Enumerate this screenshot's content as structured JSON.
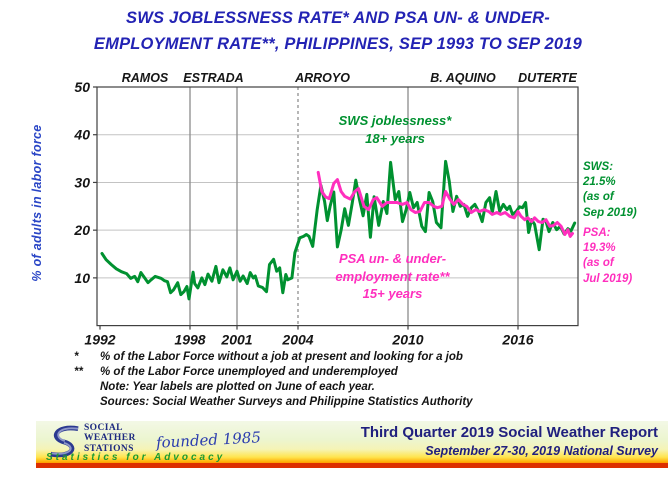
{
  "title": "SWS JOBLESSNESS RATE* AND PSA UN- & UNDER-\nEMPLOYMENT RATE**, PHILIPPINES, SEP 1993 TO SEP 2019",
  "colors": {
    "title_blue": "#2323b4",
    "axis_label_blue": "#2a46c6",
    "sws_green": "#009130",
    "psa_pink": "#ff2fbe",
    "footer_navy": "#20207e"
  },
  "chart_data": {
    "type": "line",
    "title": "SWS Joblessness Rate and PSA Un- & Under-employment Rate, Philippines, Sep 1993 to Sep 2019",
    "xlabel": "",
    "ylabel": "% of adults in labor force",
    "ylim": [
      0,
      50
    ],
    "y_ticks": [
      10,
      20,
      30,
      40,
      50
    ],
    "x_tick_years": [
      1992,
      1998,
      2001,
      2004,
      2010,
      2016
    ],
    "grid": "horizontal",
    "era_dividers_solid": [
      1998,
      2001,
      2010,
      2016
    ],
    "era_dividers_dashed": [
      2004
    ],
    "eras": [
      {
        "label": "RAMOS",
        "start": 1992.0,
        "end": 1998.0
      },
      {
        "label": "ESTRADA",
        "start": 1998.0,
        "end": 2001.0
      },
      {
        "label": "ARROYO",
        "start": 2001.0,
        "end": 2010.0
      },
      {
        "label": "B. AQUINO",
        "start": 2010.0,
        "end": 2016.0
      },
      {
        "label": "DUTERTE",
        "start": 2016.0,
        "end": 2019.9
      }
    ],
    "series": [
      {
        "name": "SWS joblessness (18+ years)",
        "color": "#009130",
        "points": [
          [
            1993.7,
            15.1
          ],
          [
            1993.9,
            13.8
          ],
          [
            1994.15,
            12.8
          ],
          [
            1994.4,
            11.9
          ],
          [
            1994.65,
            11.3
          ],
          [
            1994.9,
            10.9
          ],
          [
            1995.1,
            9.9
          ],
          [
            1995.3,
            10.3
          ],
          [
            1995.45,
            9.2
          ],
          [
            1995.6,
            11.1
          ],
          [
            1995.8,
            9.9
          ],
          [
            1995.95,
            9.0
          ],
          [
            1996.1,
            9.6
          ],
          [
            1996.3,
            10.3
          ],
          [
            1996.45,
            10.1
          ],
          [
            1996.6,
            9.9
          ],
          [
            1996.75,
            9.4
          ],
          [
            1996.9,
            9.2
          ],
          [
            1997.05,
            6.9
          ],
          [
            1997.2,
            7.5
          ],
          [
            1997.4,
            9.0
          ],
          [
            1997.55,
            6.5
          ],
          [
            1997.7,
            7.1
          ],
          [
            1997.85,
            8.2
          ],
          [
            1997.95,
            5.6
          ],
          [
            1998.2,
            11.2
          ],
          [
            1998.3,
            8.8
          ],
          [
            1998.5,
            7.9
          ],
          [
            1998.75,
            10.0
          ],
          [
            1998.95,
            8.6
          ],
          [
            1999.15,
            10.8
          ],
          [
            1999.4,
            9.3
          ],
          [
            1999.65,
            12.4
          ],
          [
            1999.85,
            9.0
          ],
          [
            2000.1,
            11.7
          ],
          [
            2000.35,
            10.2
          ],
          [
            2000.55,
            12.1
          ],
          [
            2000.75,
            9.6
          ],
          [
            2001.0,
            11.4
          ],
          [
            2001.15,
            9.3
          ],
          [
            2001.3,
            10.4
          ],
          [
            2001.5,
            8.8
          ],
          [
            2001.65,
            11.1
          ],
          [
            2001.8,
            10.0
          ],
          [
            2001.9,
            10.4
          ],
          [
            2002.05,
            8.3
          ],
          [
            2002.25,
            8.0
          ],
          [
            2002.45,
            7.1
          ],
          [
            2002.6,
            12.8
          ],
          [
            2002.8,
            13.9
          ],
          [
            2002.95,
            11.4
          ],
          [
            2003.1,
            12.1
          ],
          [
            2003.25,
            6.9
          ],
          [
            2003.4,
            10.7
          ],
          [
            2003.5,
            9.6
          ],
          [
            2003.7,
            10.0
          ],
          [
            2003.85,
            15.3
          ],
          [
            2004.1,
            18.4
          ],
          [
            2004.3,
            18.7
          ],
          [
            2004.45,
            19.1
          ],
          [
            2004.6,
            18.7
          ],
          [
            2004.8,
            16.6
          ],
          [
            2005.05,
            24.3
          ],
          [
            2005.25,
            29.4
          ],
          [
            2005.45,
            26.0
          ],
          [
            2005.6,
            22.0
          ],
          [
            2005.75,
            25.0
          ],
          [
            2005.95,
            28.0
          ],
          [
            2006.15,
            16.5
          ],
          [
            2006.35,
            20.0
          ],
          [
            2006.55,
            24.5
          ],
          [
            2006.75,
            21.0
          ],
          [
            2006.95,
            25.5
          ],
          [
            2007.15,
            30.5
          ],
          [
            2007.35,
            26.5
          ],
          [
            2007.55,
            23.0
          ],
          [
            2007.75,
            27.5
          ],
          [
            2007.95,
            18.5
          ],
          [
            2008.15,
            27.0
          ],
          [
            2008.4,
            21.0
          ],
          [
            2008.65,
            26.0
          ],
          [
            2008.85,
            23.5
          ],
          [
            2009.05,
            34.2
          ],
          [
            2009.3,
            26.4
          ],
          [
            2009.5,
            28.1
          ],
          [
            2009.7,
            21.8
          ],
          [
            2009.9,
            24.3
          ],
          [
            2010.1,
            27.9
          ],
          [
            2010.3,
            24.7
          ],
          [
            2010.5,
            25.8
          ],
          [
            2010.75,
            20.8
          ],
          [
            2010.95,
            19.7
          ],
          [
            2011.15,
            27.9
          ],
          [
            2011.35,
            26.0
          ],
          [
            2011.55,
            21.6
          ],
          [
            2011.8,
            20.5
          ],
          [
            2012.05,
            34.4
          ],
          [
            2012.25,
            30.2
          ],
          [
            2012.45,
            23.9
          ],
          [
            2012.65,
            27.1
          ],
          [
            2012.85,
            25.0
          ],
          [
            2013.05,
            25.4
          ],
          [
            2013.25,
            22.9
          ],
          [
            2013.45,
            24.7
          ],
          [
            2013.65,
            25.4
          ],
          [
            2013.85,
            23.9
          ],
          [
            2014.05,
            21.8
          ],
          [
            2014.25,
            25.8
          ],
          [
            2014.45,
            26.8
          ],
          [
            2014.6,
            23.7
          ],
          [
            2014.8,
            28.1
          ],
          [
            2015.0,
            23.9
          ],
          [
            2015.2,
            25.4
          ],
          [
            2015.4,
            24.3
          ],
          [
            2015.55,
            25.0
          ],
          [
            2015.7,
            23.3
          ],
          [
            2015.9,
            23.9
          ],
          [
            2016.1,
            24.9
          ],
          [
            2016.3,
            24.7
          ],
          [
            2016.5,
            25.8
          ],
          [
            2016.7,
            19.5
          ],
          [
            2016.9,
            22.2
          ],
          [
            2017.1,
            21.2
          ],
          [
            2017.4,
            15.9
          ],
          [
            2017.65,
            22.3
          ],
          [
            2017.85,
            21.8
          ],
          [
            2018.05,
            19.7
          ],
          [
            2018.3,
            21.6
          ],
          [
            2018.55,
            20.1
          ],
          [
            2018.8,
            20.8
          ],
          [
            2019.05,
            19.2
          ],
          [
            2019.3,
            20.3
          ],
          [
            2019.5,
            19.8
          ],
          [
            2019.75,
            21.5
          ]
        ]
      },
      {
        "name": "PSA un- & underemployment (15+ years)",
        "color": "#ff2fbe",
        "points": [
          [
            2005.1,
            32.1
          ],
          [
            2005.3,
            28.1
          ],
          [
            2005.5,
            27.0
          ],
          [
            2005.7,
            26.6
          ],
          [
            2005.95,
            29.8
          ],
          [
            2006.15,
            30.6
          ],
          [
            2006.35,
            28.1
          ],
          [
            2006.55,
            27.1
          ],
          [
            2006.85,
            26.5
          ],
          [
            2007.1,
            28.1
          ],
          [
            2007.3,
            28.7
          ],
          [
            2007.6,
            25.0
          ],
          [
            2007.85,
            24.3
          ],
          [
            2008.1,
            26.4
          ],
          [
            2008.3,
            26.8
          ],
          [
            2008.6,
            25.0
          ],
          [
            2008.85,
            25.8
          ],
          [
            2009.1,
            25.8
          ],
          [
            2009.4,
            25.8
          ],
          [
            2009.7,
            25.4
          ],
          [
            2009.95,
            25.8
          ],
          [
            2010.15,
            24.3
          ],
          [
            2010.4,
            23.7
          ],
          [
            2010.65,
            23.9
          ],
          [
            2010.9,
            25.8
          ],
          [
            2011.15,
            25.8
          ],
          [
            2011.4,
            25.0
          ],
          [
            2011.6,
            24.7
          ],
          [
            2011.85,
            25.0
          ],
          [
            2012.05,
            28.1
          ],
          [
            2012.3,
            26.4
          ],
          [
            2012.5,
            25.4
          ],
          [
            2012.75,
            26.4
          ],
          [
            2013.0,
            25.4
          ],
          [
            2013.2,
            25.0
          ],
          [
            2013.45,
            23.7
          ],
          [
            2013.7,
            24.3
          ],
          [
            2013.9,
            23.9
          ],
          [
            2014.15,
            24.3
          ],
          [
            2014.4,
            23.9
          ],
          [
            2014.6,
            23.3
          ],
          [
            2014.85,
            23.7
          ],
          [
            2015.05,
            23.3
          ],
          [
            2015.3,
            23.7
          ],
          [
            2015.55,
            22.9
          ],
          [
            2015.8,
            22.6
          ],
          [
            2016.0,
            23.9
          ],
          [
            2016.2,
            22.9
          ],
          [
            2016.45,
            22.2
          ],
          [
            2016.65,
            22.6
          ],
          [
            2016.9,
            21.8
          ],
          [
            2017.1,
            22.6
          ],
          [
            2017.35,
            21.8
          ],
          [
            2017.6,
            21.6
          ],
          [
            2017.85,
            22.2
          ],
          [
            2018.1,
            20.8
          ],
          [
            2018.35,
            21.0
          ],
          [
            2018.6,
            21.6
          ],
          [
            2018.85,
            20.8
          ],
          [
            2019.1,
            19.1
          ],
          [
            2019.3,
            20.1
          ],
          [
            2019.45,
            18.7
          ],
          [
            2019.6,
            19.3
          ]
        ]
      }
    ]
  },
  "annotations": {
    "sws_inchart": "SWS joblessness*\n18+ years",
    "psa_inchart": "PSA un- & under-\nemployment rate**\n15+ years",
    "sws_side": "SWS:\n21.5%\n(as of\nSep 2019)",
    "psa_side": "PSA:\n19.3%\n(as of\nJul 2019)"
  },
  "footnotes": [
    {
      "marker": "*",
      "text": "% of the Labor Force without a job at present and looking for a job"
    },
    {
      "marker": "**",
      "text": "% of the Labor Force unemployed and underemployed"
    },
    {
      "marker": "",
      "text": "Note: Year labels are plotted on June of each year."
    },
    {
      "marker": "",
      "text": "Sources: Social Weather Surveys and Philippine Statistics Authority"
    }
  ],
  "footer": {
    "org_name": "SOCIAL\nWEATHER\nSTATIONS",
    "founded": "founded 1985",
    "motto": "Statistics for Advocacy",
    "report_title": "Third Quarter 2019 Social Weather Report",
    "report_subtitle": "September 27-30, 2019 National Survey"
  }
}
